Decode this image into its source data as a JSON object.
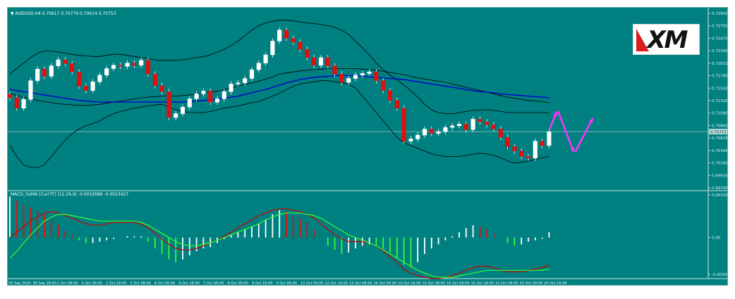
{
  "main_chart": {
    "symbol_info": "▼ AUDUSD,H4  0.70617 0.70779 0.70614 0.70753",
    "price_ticks": [
      "0.72930",
      "0.72700",
      "0.72470",
      "0.72240",
      "0.72010",
      "0.71780",
      "0.71550",
      "0.71320",
      "0.71090",
      "0.70860",
      "0.70625",
      "0.70395",
      "0.70165",
      "0.69935",
      "0.69705"
    ],
    "current_price": "0.70753"
  },
  "indicator": {
    "label": "MACD_OsMA [CurrTF] (12,26,9) -0.0019586 -0.0023427",
    "ticks": [
      "0.003325",
      "0.00",
      "-0.00300"
    ]
  },
  "time_axis": [
    "29 Sep 2020",
    "30 Sep 16:00",
    "1 Oct 08:00",
    "2 Oct 00:00",
    "2 Oct 16:00",
    "5 Oct 08:00",
    "6 Oct 00:00",
    "6 Oct 16:00",
    "7 Oct 08:00",
    "8 Oct 00:00",
    "8 Oct 16:00",
    "9 Oct 08:00",
    "12 Oct 00:00",
    "12 Oct 16:00",
    "13 Oct 08:00",
    "14 Oct 00:00",
    "14 Oct 16:00",
    "15 Oct 08:00",
    "16 Oct 00:00",
    "16 Oct 16:00",
    "19 Oct 08:00",
    "20 Oct 00:00",
    "20 Oct 16:00"
  ],
  "logo": {
    "text": "XM"
  },
  "colors": {
    "background": "#008080",
    "bull_candle": "#ffffff",
    "bear_candle": "#e01010",
    "bollinger": "#000000",
    "ma": "#0000cc",
    "arrow": "#ff33ff",
    "macd_line": "#cc0000",
    "signal_line": "#33ff33"
  },
  "chart_data": {
    "type": "candlestick",
    "title": "AUDUSD,H4",
    "ylim": [
      0.69705,
      0.7293
    ],
    "closes": [
      0.7137,
      0.7118,
      0.7134,
      0.7168,
      0.7189,
      0.7176,
      0.7195,
      0.7206,
      0.7199,
      0.7184,
      0.7158,
      0.715,
      0.7166,
      0.7178,
      0.719,
      0.7196,
      0.7194,
      0.72,
      0.7196,
      0.7205,
      0.718,
      0.7159,
      0.7148,
      0.7101,
      0.7108,
      0.712,
      0.7135,
      0.7144,
      0.7149,
      0.7129,
      0.7135,
      0.7148,
      0.7162,
      0.7164,
      0.7172,
      0.7188,
      0.72,
      0.7215,
      0.724,
      0.726,
      0.7245,
      0.7238,
      0.7225,
      0.721,
      0.7196,
      0.721,
      0.7195,
      0.718,
      0.7165,
      0.7172,
      0.7178,
      0.7181,
      0.7184,
      0.7168,
      0.715,
      0.7132,
      0.7118,
      0.7058,
      0.7062,
      0.7069,
      0.708,
      0.7072,
      0.7075,
      0.7083,
      0.7086,
      0.7089,
      0.7079,
      0.7098,
      0.7093,
      0.7088,
      0.708,
      0.7065,
      0.7048,
      0.704,
      0.703,
      0.7027,
      0.7058,
      0.705,
      0.7075
    ],
    "bb_mid": [
      0.7145,
      0.7141,
      0.7138,
      0.7135,
      0.7132,
      0.713,
      0.7128,
      0.7126,
      0.7125,
      0.7124,
      0.7123,
      0.7123,
      0.7124,
      0.7125,
      0.7127,
      0.7129,
      0.7131,
      0.7133,
      0.7135,
      0.7137,
      0.7138,
      0.7139,
      0.714,
      0.714,
      0.714,
      0.7141,
      0.7142,
      0.7143,
      0.7145,
      0.7147,
      0.7149,
      0.7152,
      0.7155,
      0.7158,
      0.7161,
      0.7164,
      0.7167,
      0.7171,
      0.7175,
      0.718,
      0.7182,
      0.7184,
      0.7186,
      0.7187,
      0.7188,
      0.7189,
      0.719,
      0.719,
      0.719,
      0.719,
      0.719,
      0.7189,
      0.7188,
      0.7187,
      0.7185,
      0.7183,
      0.7181,
      0.7179,
      0.7176,
      0.7173,
      0.7171,
      0.7169,
      0.7167,
      0.7165,
      0.7162,
      0.7159,
      0.7156,
      0.7153,
      0.715,
      0.7147,
      0.7144,
      0.7141,
      0.7138,
      0.7136,
      0.7134,
      0.7132,
      0.7131,
      0.713,
      0.7128
    ],
    "bb_upper": [
      0.718,
      0.719,
      0.72,
      0.721,
      0.7218,
      0.7222,
      0.7222,
      0.722,
      0.7218,
      0.7216,
      0.7214,
      0.7213,
      0.7212,
      0.7212,
      0.7214,
      0.7216,
      0.7216,
      0.7214,
      0.7212,
      0.721,
      0.7208,
      0.7206,
      0.7205,
      0.7205,
      0.7205,
      0.7206,
      0.7208,
      0.721,
      0.7212,
      0.7215,
      0.722,
      0.7225,
      0.7232,
      0.724,
      0.725,
      0.726,
      0.7268,
      0.7273,
      0.7276,
      0.7278,
      0.7278,
      0.7277,
      0.7275,
      0.7273,
      0.7272,
      0.727,
      0.7268,
      0.7265,
      0.726,
      0.7252,
      0.724,
      0.7228,
      0.7215,
      0.72,
      0.7188,
      0.7178,
      0.717,
      0.716,
      0.715,
      0.7138,
      0.7125,
      0.7115,
      0.711,
      0.7108,
      0.7108,
      0.711,
      0.7112,
      0.7114,
      0.7115,
      0.7115,
      0.7114,
      0.7112,
      0.711,
      0.711,
      0.711,
      0.711,
      0.711,
      0.711,
      0.711
    ],
    "bb_lower": [
      0.705,
      0.703,
      0.7015,
      0.701,
      0.701,
      0.7015,
      0.703,
      0.7045,
      0.706,
      0.7072,
      0.708,
      0.7086,
      0.709,
      0.7095,
      0.7102,
      0.7108,
      0.7112,
      0.7115,
      0.7118,
      0.712,
      0.7122,
      0.7124,
      0.7125,
      0.712,
      0.7115,
      0.7112,
      0.711,
      0.711,
      0.711,
      0.7112,
      0.7115,
      0.7118,
      0.712,
      0.7122,
      0.7125,
      0.7128,
      0.713,
      0.7135,
      0.714,
      0.7145,
      0.7152,
      0.7158,
      0.7162,
      0.7164,
      0.7166,
      0.7168,
      0.7168,
      0.7166,
      0.7164,
      0.7162,
      0.7155,
      0.714,
      0.7125,
      0.711,
      0.7095,
      0.708,
      0.7065,
      0.7055,
      0.705,
      0.7045,
      0.704,
      0.7035,
      0.7032,
      0.703,
      0.703,
      0.703,
      0.7032,
      0.7034,
      0.7036,
      0.7035,
      0.7032,
      0.7028,
      0.7022,
      0.7018,
      0.702,
      0.7022,
      0.7025,
      0.7028,
      0.703
    ],
    "ma_slow": [
      0.7152,
      0.715,
      0.7148,
      0.7146,
      0.7144,
      0.7142,
      0.714,
      0.7138,
      0.7136,
      0.7134,
      0.7132,
      0.7131,
      0.713,
      0.7129,
      0.7129,
      0.7129,
      0.7129,
      0.7129,
      0.7129,
      0.7129,
      0.7129,
      0.7129,
      0.7129,
      0.7129,
      0.7129,
      0.7129,
      0.713,
      0.7131,
      0.7132,
      0.7133,
      0.7134,
      0.7136,
      0.7138,
      0.714,
      0.7143,
      0.7146,
      0.7149,
      0.7152,
      0.7156,
      0.716,
      0.7164,
      0.7167,
      0.717,
      0.7172,
      0.7174,
      0.7175,
      0.7176,
      0.7177,
      0.7177,
      0.7177,
      0.7177,
      0.7176,
      0.7175,
      0.7174,
      0.7173,
      0.7172,
      0.7171,
      0.717,
      0.7168,
      0.7166,
      0.7164,
      0.7162,
      0.716,
      0.7158,
      0.7156,
      0.7154,
      0.7152,
      0.715,
      0.7148,
      0.7147,
      0.7146,
      0.7144,
      0.7143,
      0.7142,
      0.7141,
      0.714,
      0.7139,
      0.7138,
      0.7137
    ],
    "macd_hist": [
      0.003,
      0.0027,
      0.0024,
      0.0022,
      0.002,
      0.0017,
      0.0013,
      0.0009,
      0.0005,
      0.0002,
      -0.0002,
      -0.0004,
      -0.0004,
      -0.0003,
      -0.0002,
      -0.0001,
      0.0,
      0.0001,
      0.0001,
      0.0001,
      -0.0003,
      -0.0008,
      -0.0012,
      -0.0016,
      -0.0018,
      -0.0016,
      -0.0013,
      -0.001,
      -0.0008,
      -0.0007,
      -0.0004,
      -0.0001,
      0.0002,
      0.0004,
      0.0006,
      0.0008,
      0.001,
      0.0013,
      0.0017,
      0.002,
      0.0019,
      0.0016,
      0.0014,
      0.0011,
      0.0006,
      0.0,
      -0.0006,
      -0.0009,
      -0.0012,
      -0.0011,
      -0.0008,
      -0.0006,
      -0.0005,
      -0.0006,
      -0.0008,
      -0.0011,
      -0.0015,
      -0.002,
      -0.0022,
      -0.0018,
      -0.0012,
      -0.0008,
      -0.0005,
      -0.0002,
      0.0001,
      0.0004,
      0.0007,
      0.0009,
      0.0008,
      0.0006,
      0.0003,
      0.0,
      -0.0004,
      -0.0006,
      -0.0005,
      -0.0003,
      -0.0002,
      -0.0001,
      0.0004
    ],
    "macd_line": [
      0.0,
      0.0004,
      0.0008,
      0.0012,
      0.0015,
      0.0018,
      0.0019,
      0.0018,
      0.0016,
      0.0014,
      0.0012,
      0.001,
      0.0009,
      0.0009,
      0.001,
      0.0011,
      0.0011,
      0.0011,
      0.0011,
      0.001,
      0.0007,
      0.0003,
      -0.0001,
      -0.0005,
      -0.0008,
      -0.0009,
      -0.0009,
      -0.0008,
      -0.0006,
      -0.0004,
      -0.0002,
      0.0001,
      0.0004,
      0.0007,
      0.001,
      0.0013,
      0.0016,
      0.0018,
      0.002,
      0.0021,
      0.0021,
      0.002,
      0.0019,
      0.0017,
      0.0014,
      0.001,
      0.0006,
      0.0002,
      -0.0001,
      -0.0003,
      -0.0003,
      -0.0003,
      -0.0004,
      -0.0006,
      -0.001,
      -0.0014,
      -0.0018,
      -0.0023,
      -0.0026,
      -0.0028,
      -0.0029,
      -0.003,
      -0.003,
      -0.0029,
      -0.0028,
      -0.0026,
      -0.0024,
      -0.0022,
      -0.0021,
      -0.0021,
      -0.0022,
      -0.0024,
      -0.0025,
      -0.0025,
      -0.0025,
      -0.0024,
      -0.0023,
      -0.0022,
      -0.002
    ],
    "signal_line": [
      -0.0015,
      -0.001,
      -0.0004,
      0.0002,
      0.0007,
      0.0012,
      0.0015,
      0.0017,
      0.0017,
      0.0016,
      0.0015,
      0.0014,
      0.0013,
      0.0012,
      0.0012,
      0.0012,
      0.0012,
      0.0012,
      0.0012,
      0.0011,
      0.0009,
      0.0006,
      0.0003,
      0.0,
      -0.0003,
      -0.0005,
      -0.0006,
      -0.0006,
      -0.0005,
      -0.0004,
      -0.0002,
      0.0,
      0.0002,
      0.0004,
      0.0006,
      0.0008,
      0.001,
      0.0013,
      0.0015,
      0.0017,
      0.0018,
      0.0018,
      0.0018,
      0.0017,
      0.0016,
      0.0014,
      0.0011,
      0.0008,
      0.0005,
      0.0002,
      0.0,
      -0.0002,
      -0.0004,
      -0.0006,
      -0.0009,
      -0.0012,
      -0.0015,
      -0.0018,
      -0.0021,
      -0.0024,
      -0.0026,
      -0.0028,
      -0.0029,
      -0.0029,
      -0.0029,
      -0.0028,
      -0.0027,
      -0.0026,
      -0.0025,
      -0.0024,
      -0.0024,
      -0.0024,
      -0.0024,
      -0.0024,
      -0.0024,
      -0.0024,
      -0.0024,
      -0.0024,
      -0.0023
    ],
    "forecast_arrows": [
      [
        0.708,
        0.7112
      ],
      [
        0.7112,
        0.7038
      ],
      [
        0.7038,
        0.71
      ]
    ]
  }
}
